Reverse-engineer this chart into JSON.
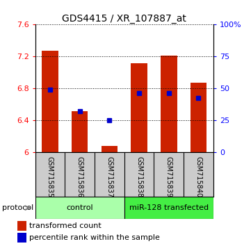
{
  "title": "GDS4415 / XR_107887_at",
  "samples": [
    "GSM715835",
    "GSM715836",
    "GSM715837",
    "GSM715838",
    "GSM715839",
    "GSM715840"
  ],
  "red_values": [
    7.27,
    6.52,
    6.08,
    7.12,
    7.21,
    6.87
  ],
  "blue_values": [
    6.79,
    6.52,
    6.4,
    6.74,
    6.74,
    6.68
  ],
  "ylim_left": [
    6.0,
    7.6
  ],
  "ylim_right": [
    0,
    100
  ],
  "yticks_left": [
    6.0,
    6.4,
    6.8,
    7.2,
    7.6
  ],
  "yticks_right": [
    0,
    25,
    50,
    75,
    100
  ],
  "yticklabels_left": [
    "6",
    "6.4",
    "6.8",
    "7.2",
    "7.6"
  ],
  "yticklabels_right": [
    "0",
    "25",
    "50",
    "75",
    "100%"
  ],
  "bar_color_red": "#cc2200",
  "bar_color_blue": "#0000cc",
  "bar_width": 0.55,
  "background_color": "#ffffff",
  "plot_bg": "#ffffff",
  "label_bg": "#cccccc",
  "ctrl_color": "#aaffaa",
  "mir_color": "#44ee44",
  "title_fontsize": 10,
  "tick_fontsize": 8,
  "sample_fontsize": 7,
  "legend_fontsize": 8,
  "proto_fontsize": 8
}
